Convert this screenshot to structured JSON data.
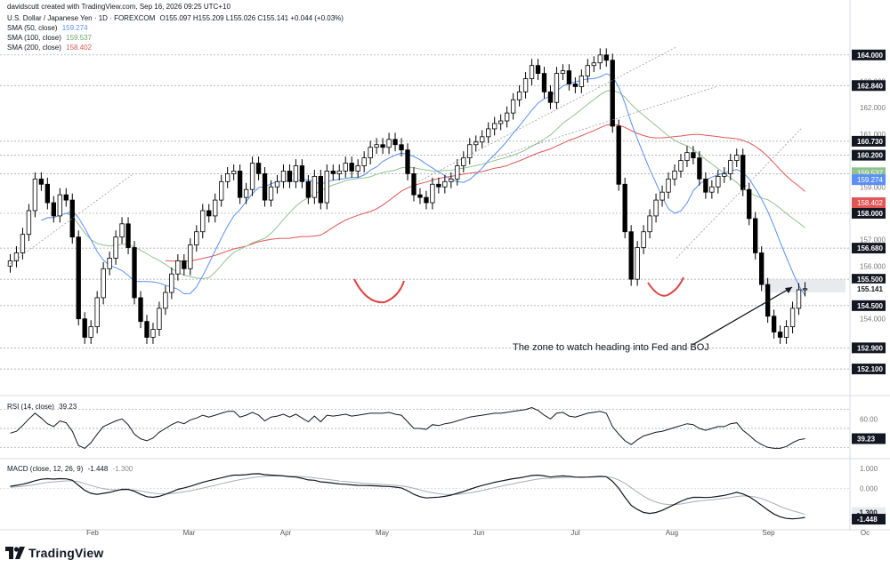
{
  "header": {
    "credit": "davidscutt created with TradingView.com, Sep 16, 2026 09:25 UTC+10",
    "symbol": "U.S. Dollar / Japanese Yen · 1D · FOREXCOM",
    "ohlc": "O155.097 H155.209 L155.026 C155.141 +0.044 (+0.03%)",
    "sma50_label": "SMA (50, close)",
    "sma50_value": "159.274",
    "sma100_label": "SMA (100, close)",
    "sma100_value": "159.537",
    "sma200_label": "SMA (200, close)",
    "sma200_value": "158.402"
  },
  "footer": {
    "brand": "TradingView"
  },
  "annotation": "The zone to watch heading into Fed and BOJ",
  "chart_data": [
    {
      "type": "candlestick",
      "title": "U.S. Dollar / Japanese Yen · 1D · FOREXCOM",
      "ylim": [
        151.8,
        164.6
      ],
      "x_axis_labels": [
        "Feb",
        "Mar",
        "Apr",
        "May",
        "Jun",
        "Jul",
        "Aug",
        "Sep",
        "Oc"
      ],
      "y_ticks": [
        154.0,
        156.0,
        157.0,
        159.0,
        161.0,
        162.0,
        163.0
      ],
      "price_labels": [
        "164.000",
        "162.840",
        "160.730",
        "160.200",
        "159.500",
        "158.000",
        "156.680",
        "155.500",
        "155.141",
        "154.500",
        "152.900",
        "152.100"
      ],
      "sma_labels": {
        "sma50": "159.274",
        "sma100": "159.537",
        "sma200": "158.402"
      },
      "colors": {
        "up": "#ffffff",
        "down": "#000000",
        "sma50": "#5b8ff5",
        "sma100": "#8fc28f",
        "sma200": "#e05555",
        "last": "#555555"
      },
      "series_close": [
        156.2,
        156.5,
        157.2,
        158.1,
        159.3,
        159.1,
        158.4,
        157.9,
        158.7,
        158.5,
        157.1,
        154.0,
        153.3,
        153.7,
        154.8,
        155.9,
        156.3,
        157.1,
        157.6,
        156.7,
        154.8,
        153.9,
        153.3,
        153.6,
        154.4,
        155.0,
        155.7,
        156.2,
        155.9,
        156.8,
        157.3,
        158.1,
        157.9,
        158.5,
        159.2,
        159.5,
        159.6,
        158.6,
        158.9,
        159.9,
        159.5,
        158.5,
        159.0,
        159.2,
        159.6,
        159.2,
        159.8,
        159.2,
        158.6,
        159.4,
        158.4,
        159.6,
        159.5,
        159.6,
        159.9,
        159.6,
        159.8,
        160.1,
        160.5,
        160.6,
        160.5,
        160.8,
        160.6,
        160.4,
        159.5,
        158.7,
        158.6,
        158.4,
        159.1,
        159.0,
        159.2,
        159.3,
        159.8,
        160.1,
        160.6,
        160.7,
        160.9,
        161.2,
        161.4,
        161.5,
        161.8,
        162.3,
        162.6,
        163.1,
        163.6,
        163.3,
        162.6,
        162.2,
        163.3,
        163.4,
        162.9,
        162.8,
        163.2,
        163.6,
        163.7,
        164.0,
        163.8,
        161.3,
        159.1,
        157.3,
        155.5,
        156.7,
        157.3,
        157.9,
        158.5,
        158.8,
        159.3,
        159.6,
        160.0,
        160.3,
        160.1,
        159.3,
        158.8,
        159.0,
        159.4,
        159.5,
        160.0,
        160.2,
        158.9,
        157.8,
        156.5,
        155.3,
        154.1,
        153.5,
        153.3,
        153.7,
        154.4,
        155.1,
        155.141
      ],
      "annotation_text": "The zone to watch heading into Fed and BOJ"
    },
    {
      "type": "line",
      "title": "RSI (14, close)",
      "ylim": [
        20,
        80
      ],
      "y_ticks": [
        60.0,
        40.0
      ],
      "levels": [
        30,
        50,
        70
      ],
      "current_label": "39.23",
      "series": [
        {
          "name": "RSI (14, close)",
          "values": [
            45,
            47,
            53,
            60,
            66,
            61,
            55,
            52,
            58,
            56,
            47,
            32,
            29,
            35,
            44,
            52,
            55,
            58,
            60,
            54,
            44,
            39,
            37,
            40,
            46,
            50,
            54,
            57,
            55,
            59,
            61,
            64,
            62,
            64,
            66,
            68,
            68,
            62,
            64,
            67,
            64,
            58,
            62,
            63,
            65,
            62,
            65,
            61,
            57,
            63,
            57,
            64,
            63,
            64,
            65,
            63,
            64,
            65,
            66,
            66,
            66,
            67,
            65,
            64,
            57,
            50,
            50,
            49,
            54,
            53,
            55,
            56,
            58,
            60,
            62,
            63,
            64,
            65,
            66,
            66,
            67,
            68,
            69,
            70,
            72,
            69,
            64,
            60,
            66,
            67,
            63,
            62,
            64,
            66,
            67,
            68,
            66,
            52,
            44,
            37,
            33,
            38,
            42,
            44,
            46,
            47,
            49,
            51,
            53,
            55,
            54,
            50,
            48,
            50,
            52,
            52,
            55,
            56,
            48,
            43,
            37,
            33,
            30,
            29,
            29,
            31,
            35,
            38,
            39.23
          ]
        }
      ]
    },
    {
      "type": "line",
      "title": "MACD (close, 12, 26, 9)",
      "ylim": [
        -1.8,
        1.3
      ],
      "y_ticks": [
        1.0,
        0.0
      ],
      "current_labels": [
        "-1.300",
        "-1.448"
      ],
      "series": [
        {
          "name": "MACD",
          "values": [
            0.1,
            0.15,
            0.2,
            0.28,
            0.38,
            0.45,
            0.48,
            0.46,
            0.48,
            0.47,
            0.4,
            0.15,
            -0.1,
            -0.25,
            -0.3,
            -0.25,
            -0.2,
            -0.12,
            -0.05,
            -0.05,
            -0.15,
            -0.3,
            -0.42,
            -0.45,
            -0.4,
            -0.3,
            -0.18,
            -0.05,
            0.02,
            0.1,
            0.2,
            0.3,
            0.38,
            0.45,
            0.52,
            0.6,
            0.66,
            0.66,
            0.68,
            0.72,
            0.73,
            0.68,
            0.66,
            0.64,
            0.62,
            0.58,
            0.56,
            0.5,
            0.42,
            0.4,
            0.32,
            0.3,
            0.26,
            0.22,
            0.2,
            0.17,
            0.15,
            0.14,
            0.13,
            0.12,
            0.1,
            0.09,
            0.06,
            0.02,
            -0.12,
            -0.3,
            -0.42,
            -0.48,
            -0.46,
            -0.44,
            -0.4,
            -0.34,
            -0.25,
            -0.16,
            -0.05,
            0.05,
            0.14,
            0.22,
            0.3,
            0.36,
            0.42,
            0.48,
            0.52,
            0.58,
            0.64,
            0.66,
            0.62,
            0.56,
            0.6,
            0.62,
            0.6,
            0.56,
            0.55,
            0.56,
            0.58,
            0.6,
            0.58,
            0.35,
            0.0,
            -0.45,
            -0.85,
            -1.05,
            -1.2,
            -1.25,
            -1.2,
            -1.1,
            -0.95,
            -0.8,
            -0.65,
            -0.52,
            -0.45,
            -0.45,
            -0.46,
            -0.44,
            -0.4,
            -0.35,
            -0.28,
            -0.2,
            -0.28,
            -0.42,
            -0.62,
            -0.85,
            -1.08,
            -1.28,
            -1.42,
            -1.5,
            -1.52,
            -1.5,
            -1.448
          ]
        },
        {
          "name": "Signal",
          "values": [
            0.05,
            0.07,
            0.1,
            0.14,
            0.19,
            0.24,
            0.29,
            0.32,
            0.35,
            0.37,
            0.37,
            0.33,
            0.24,
            0.14,
            0.05,
            -0.02,
            -0.06,
            -0.08,
            -0.08,
            -0.07,
            -0.09,
            -0.13,
            -0.19,
            -0.24,
            -0.27,
            -0.28,
            -0.26,
            -0.22,
            -0.17,
            -0.12,
            -0.06,
            0.01,
            0.08,
            0.15,
            0.23,
            0.3,
            0.37,
            0.43,
            0.48,
            0.53,
            0.57,
            0.59,
            0.61,
            0.62,
            0.62,
            0.61,
            0.6,
            0.58,
            0.55,
            0.52,
            0.48,
            0.45,
            0.41,
            0.37,
            0.34,
            0.31,
            0.28,
            0.25,
            0.23,
            0.21,
            0.19,
            0.17,
            0.15,
            0.12,
            0.07,
            0.0,
            -0.08,
            -0.16,
            -0.22,
            -0.27,
            -0.3,
            -0.31,
            -0.3,
            -0.27,
            -0.23,
            -0.17,
            -0.11,
            -0.04,
            0.03,
            0.1,
            0.17,
            0.23,
            0.29,
            0.35,
            0.41,
            0.46,
            0.49,
            0.5,
            0.52,
            0.54,
            0.55,
            0.55,
            0.55,
            0.55,
            0.56,
            0.57,
            0.57,
            0.53,
            0.42,
            0.25,
            0.03,
            -0.19,
            -0.39,
            -0.56,
            -0.69,
            -0.77,
            -0.81,
            -0.81,
            -0.78,
            -0.73,
            -0.67,
            -0.63,
            -0.6,
            -0.57,
            -0.54,
            -0.5,
            -0.46,
            -0.41,
            -0.38,
            -0.39,
            -0.43,
            -0.51,
            -0.63,
            -0.76,
            -0.9,
            -1.02,
            -1.12,
            -1.2,
            -1.3
          ]
        }
      ]
    }
  ]
}
